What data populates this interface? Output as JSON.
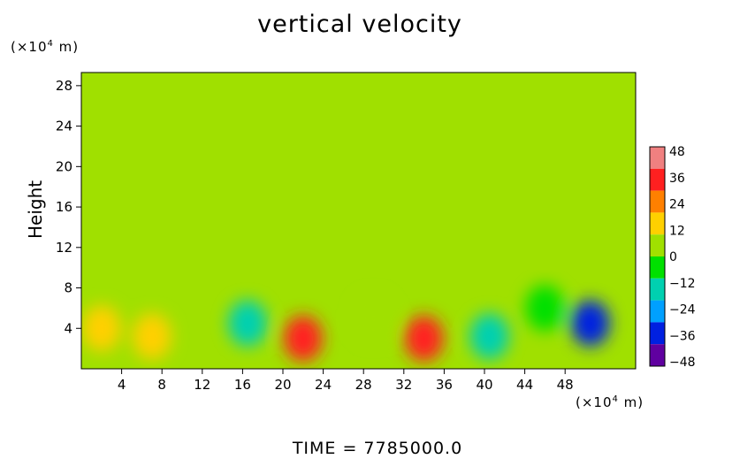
{
  "chart_data": {
    "type": "heatmap",
    "title": "vertical velocity",
    "ylabel": "Height",
    "y_unit_base": "(×10",
    "y_unit_exp": "4",
    "y_unit_tail": " m)",
    "x_unit_base": "(×10",
    "x_unit_exp": "4",
    "x_unit_tail": " m)",
    "footer": "TIME  =  7785000.0",
    "x_ticks": [
      "4",
      "8",
      "12",
      "16",
      "20",
      "24",
      "28",
      "32",
      "36",
      "40",
      "44",
      "48"
    ],
    "x_tick_values": [
      4,
      8,
      12,
      16,
      20,
      24,
      28,
      32,
      36,
      40,
      44,
      48
    ],
    "y_ticks": [
      "4",
      "8",
      "12",
      "16",
      "20",
      "24",
      "28"
    ],
    "y_tick_values": [
      4,
      8,
      12,
      16,
      20,
      24,
      28
    ],
    "xlim": [
      0,
      55
    ],
    "ylim": [
      0,
      29.3
    ],
    "colorbar": {
      "labels": [
        "48",
        "36",
        "24",
        "12",
        "0",
        "−12",
        "−24",
        "−36",
        "−48"
      ],
      "range": [
        -48,
        48
      ],
      "colors": [
        "#f08080",
        "#ff2020",
        "#ff8000",
        "#ffd000",
        "#a0e000",
        "#00e000",
        "#00d0b0",
        "#00a0ff",
        "#0020e0",
        "#6000a0"
      ]
    },
    "background_value": 2,
    "features": [
      {
        "x": 7,
        "y": 3.2,
        "value": 16
      },
      {
        "x": 22,
        "y": 3.0,
        "value": 36
      },
      {
        "x": 34,
        "y": 3.0,
        "value": 32
      },
      {
        "x": 16.5,
        "y": 4.5,
        "value": -18
      },
      {
        "x": 40.5,
        "y": 3.2,
        "value": -14
      },
      {
        "x": 50.5,
        "y": 4.5,
        "value": -32
      },
      {
        "x": 2,
        "y": 4,
        "value": 10
      },
      {
        "x": 29,
        "y": 5,
        "value": 8
      },
      {
        "x": 46,
        "y": 6,
        "value": -8
      }
    ]
  }
}
